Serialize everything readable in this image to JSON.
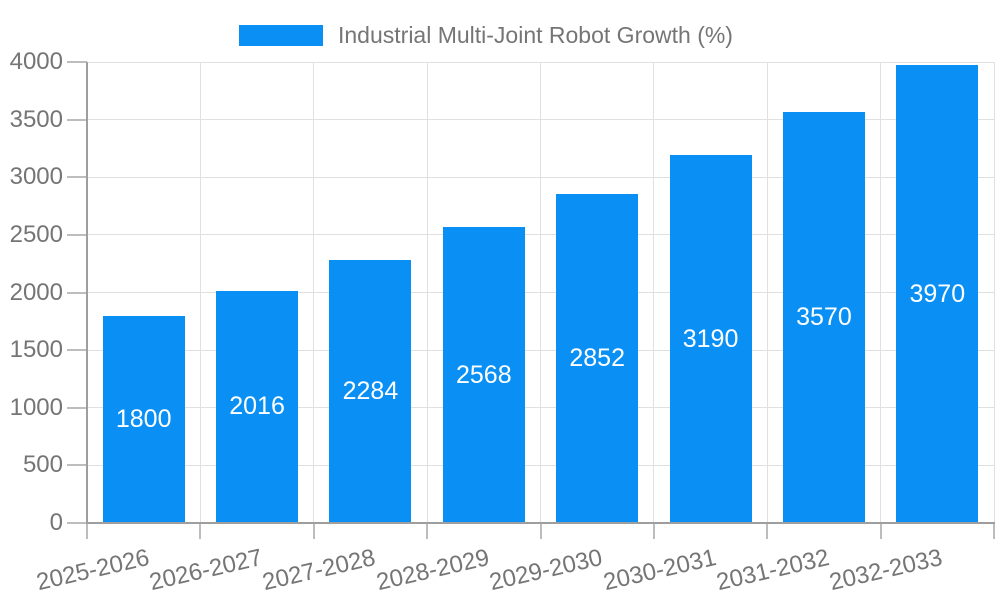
{
  "legend": {
    "label": "Industrial Multi-Joint Robot Growth (%)"
  },
  "chart_data": {
    "type": "bar",
    "title": "Industrial Multi-Joint Robot Growth (%)",
    "series_name": "Industrial Multi-Joint Robot Growth (%)",
    "categories": [
      "2025-2026",
      "2026-2027",
      "2027-2028",
      "2028-2029",
      "2029-2030",
      "2030-2031",
      "2031-2032",
      "2032-2033"
    ],
    "values": [
      1800,
      2016,
      2284,
      2568,
      2852,
      3190,
      3570,
      3970
    ],
    "bar_labels": [
      "1800",
      "2016",
      "2284",
      "2568",
      "2852",
      "3190",
      "3570",
      "3970"
    ],
    "xlabel": "",
    "ylabel": "",
    "ylim": [
      0,
      4000
    ],
    "yticks": [
      0,
      500,
      1000,
      1500,
      2000,
      2500,
      3000,
      3500,
      4000
    ],
    "ytick_labels": [
      "0",
      "500",
      "1000",
      "1500",
      "2000",
      "2500",
      "3000",
      "3500",
      "4000"
    ],
    "grid": true,
    "legend_position": "top-center",
    "bar_label_position": "inside-center",
    "x_tick_rotation_deg": -13
  },
  "colors": {
    "bar": "#0a90f5",
    "bar_label": "#ffffff",
    "grid_line": "#e0e0e0",
    "axis_line": "#9e9e9e",
    "tick_mark": "#bdbdbd",
    "tick_text": "#757575",
    "background": "#ffffff"
  }
}
